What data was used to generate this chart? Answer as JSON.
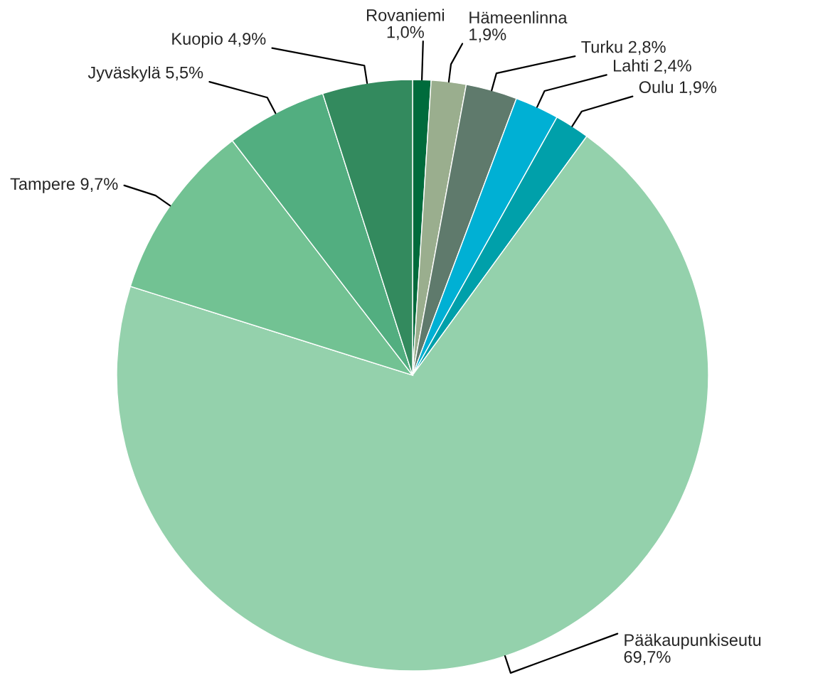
{
  "chart_data": {
    "type": "pie",
    "categories": [
      "Rovaniemi",
      "Hämeenlinna",
      "Turku",
      "Lahti",
      "Oulu",
      "Pääkaupunkiseutu",
      "Tampere",
      "Jyväskylä",
      "Kuopio"
    ],
    "values": [
      1.0,
      1.9,
      2.8,
      2.4,
      1.9,
      69.7,
      9.7,
      5.5,
      4.9
    ],
    "value_labels": [
      "1,0%",
      "1,9%",
      "2,8%",
      "2,4%",
      "1,9%",
      "69,7%",
      "9,7%",
      "5,5%",
      "4,9%"
    ],
    "colors": [
      "#006b3c",
      "#9aae8e",
      "#5f7a6c",
      "#00b0d4",
      "#00a0aa",
      "#94d1ac",
      "#72c293",
      "#52ae80",
      "#338a5e"
    ]
  }
}
